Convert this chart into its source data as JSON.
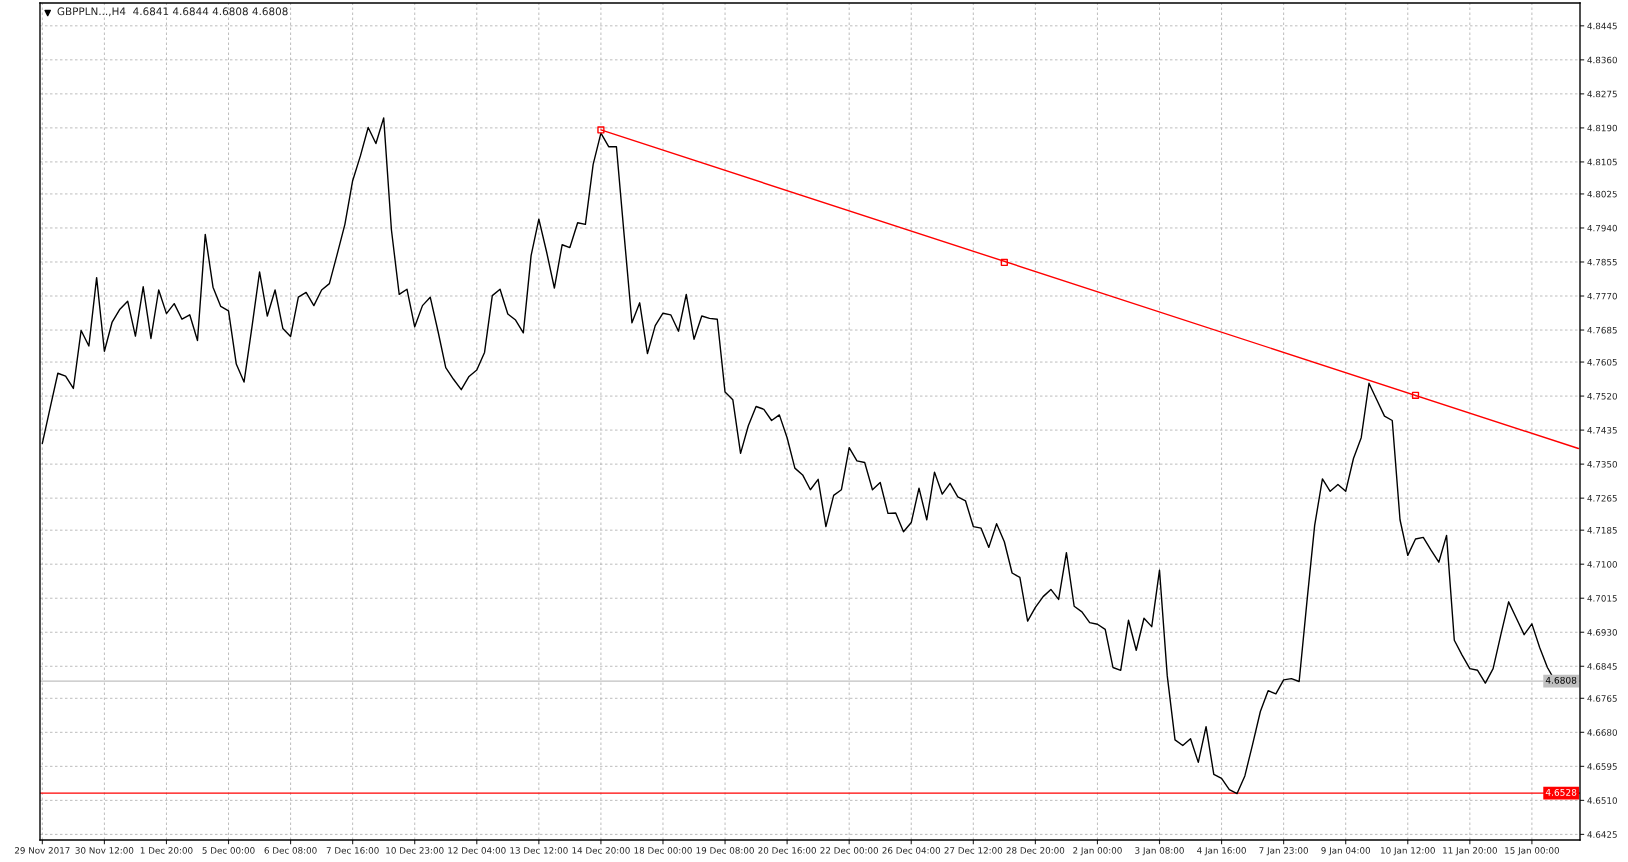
{
  "chart_data": {
    "type": "line",
    "title": "GBPPLN...,H4  4.6841 4.6844 4.6808 4.6808",
    "categories": [
      "29 Nov 2017",
      null,
      null,
      null,
      null,
      null,
      null,
      null,
      "30 Nov 12:00",
      null,
      null,
      null,
      null,
      null,
      null,
      null,
      "1 Dec 20:00",
      null,
      null,
      null,
      null,
      null,
      null,
      null,
      "5 Dec 00:00",
      null,
      null,
      null,
      null,
      null,
      null,
      null,
      "6 Dec 08:00",
      null,
      null,
      null,
      null,
      null,
      null,
      null,
      "7 Dec 16:00",
      null,
      null,
      null,
      null,
      null,
      null,
      null,
      "10 Dec 23:00",
      null,
      null,
      null,
      null,
      null,
      null,
      null,
      "12 Dec 04:00",
      null,
      null,
      null,
      null,
      null,
      null,
      null,
      "13 Dec 12:00",
      null,
      null,
      null,
      null,
      null,
      null,
      null,
      "14 Dec 20:00",
      null,
      null,
      null,
      null,
      null,
      null,
      null,
      "18 Dec 00:00",
      null,
      null,
      null,
      null,
      null,
      null,
      null,
      "19 Dec 08:00",
      null,
      null,
      null,
      null,
      null,
      null,
      null,
      "20 Dec 16:00",
      null,
      null,
      null,
      null,
      null,
      null,
      null,
      "22 Dec 00:00",
      null,
      null,
      null,
      null,
      null,
      null,
      null,
      "26 Dec 04:00",
      null,
      null,
      null,
      null,
      null,
      null,
      null,
      "27 Dec 12:00",
      null,
      null,
      null,
      null,
      null,
      null,
      null,
      "28 Dec 20:00",
      null,
      null,
      null,
      null,
      null,
      null,
      null,
      "2 Jan 00:00",
      null,
      null,
      null,
      null,
      null,
      null,
      null,
      "3 Jan 08:00",
      null,
      null,
      null,
      null,
      null,
      null,
      null,
      "4 Jan 16:00",
      null,
      null,
      null,
      null,
      null,
      null,
      null,
      "7 Jan 23:00",
      null,
      null,
      null,
      null,
      null,
      null,
      null,
      "9 Jan 04:00",
      null,
      null,
      null,
      null,
      null,
      null,
      null,
      "10 Jan 12:00",
      null,
      null,
      null,
      null,
      null,
      null,
      null,
      "11 Jan 20:00",
      null,
      null,
      null,
      null,
      null,
      null,
      null,
      "15 Jan 00:00",
      null,
      null,
      null,
      null,
      null,
      null
    ],
    "ylim": [
      4.6411,
      4.8502
    ],
    "yticks": [
      4.6425,
      {
        "value": 4.651,
        "label": "4.6510"
      },
      4.6595,
      {
        "value": 4.668,
        "label": "4.6680"
      },
      4.6765,
      4.6845,
      {
        "value": 4.693,
        "label": "4.6930"
      },
      4.7015,
      {
        "value": 4.71,
        "label": "4.7100"
      },
      4.7185,
      4.7265,
      {
        "value": 4.735,
        "label": "4.7350"
      },
      4.7435,
      {
        "value": 4.752,
        "label": "4.7520"
      },
      4.7605,
      4.7685,
      {
        "value": 4.777,
        "label": "4.7770"
      },
      4.7855,
      {
        "value": 4.794,
        "label": "4.7940"
      },
      4.8025,
      4.8105,
      {
        "value": 4.819,
        "label": "4.8190"
      },
      4.8275,
      {
        "value": 4.836,
        "label": "4.8360"
      },
      4.8445
    ],
    "grid": true,
    "line_style": "solid",
    "series": [
      {
        "color": "#000000",
        "values": [
          4.7402,
          4.749,
          4.7577,
          4.757,
          4.7539,
          4.7684,
          4.7645,
          4.7816,
          4.7632,
          4.7705,
          4.7737,
          4.7757,
          4.767,
          4.7793,
          4.7664,
          4.7785,
          4.7726,
          4.7751,
          4.7712,
          4.7723,
          4.7659,
          4.7924,
          4.7792,
          4.7744,
          4.7733,
          4.76,
          4.7555,
          4.769,
          4.783,
          4.772,
          4.7785,
          4.7689,
          4.7669,
          4.7767,
          4.7779,
          4.7746,
          4.7785,
          4.7801,
          4.7874,
          4.7949,
          4.8058,
          4.812,
          4.8191,
          4.8151,
          4.8215,
          4.7935,
          4.7774,
          4.7787,
          4.7693,
          4.7746,
          4.7767,
          4.7682,
          4.7591,
          4.7562,
          4.7536,
          4.7569,
          4.7585,
          4.7629,
          4.7771,
          4.7787,
          4.7725,
          4.771,
          4.7678,
          4.7871,
          4.7962,
          4.788,
          4.779,
          4.7898,
          4.7891,
          4.7953,
          4.7949,
          4.8099,
          4.8177,
          4.8143,
          4.8143,
          4.7921,
          4.7703,
          4.7753,
          4.7626,
          4.7696,
          4.7727,
          4.7723,
          4.7682,
          4.7774,
          4.7662,
          4.772,
          4.7714,
          4.7712,
          4.753,
          4.7511,
          4.7377,
          4.7446,
          4.7494,
          4.7487,
          4.7459,
          4.7473,
          4.7416,
          4.734,
          4.7323,
          4.7286,
          4.7312,
          4.7194,
          4.7272,
          4.7286,
          4.7391,
          4.7358,
          4.7354,
          4.7286,
          4.7304,
          4.7227,
          4.7228,
          4.7181,
          4.7204,
          4.729,
          4.7211,
          4.733,
          4.7275,
          4.7302,
          4.7268,
          4.7258,
          4.7194,
          4.719,
          4.7142,
          4.7201,
          4.7156,
          4.7078,
          4.7067,
          4.6958,
          4.6992,
          4.7019,
          4.7037,
          4.7012,
          4.7129,
          4.6995,
          4.6981,
          4.6954,
          4.695,
          4.6937,
          4.6842,
          4.6835,
          4.696,
          4.6885,
          4.6965,
          4.6944,
          4.7085,
          4.6821,
          4.6661,
          4.6647,
          4.6664,
          4.6605,
          4.6694,
          4.6575,
          4.6565,
          4.6537,
          4.6527,
          4.6571,
          4.665,
          4.6732,
          4.6784,
          4.6776,
          4.6811,
          4.6814,
          4.6807,
          4.7006,
          4.7197,
          4.7313,
          4.7282,
          4.7299,
          4.7282,
          4.7364,
          4.7416,
          4.7552,
          4.7511,
          4.747,
          4.7459,
          4.7211,
          4.7122,
          4.7163,
          4.7167,
          4.7135,
          4.7105,
          4.7172,
          4.691,
          4.6873,
          4.6839,
          4.6835,
          4.6803,
          4.6839,
          4.6924,
          4.7006,
          4.6965,
          4.6924,
          4.6951,
          4.6892,
          4.6842,
          4.6808,
          null,
          null,
          null
        ]
      },
      {
        "type": "line",
        "color": "#ff0000",
        "values": [
          null,
          null,
          null,
          null,
          null,
          null,
          null,
          null,
          null,
          null,
          null,
          null,
          null,
          null,
          null,
          null,
          null,
          null,
          null,
          null,
          null,
          null,
          null,
          null,
          null,
          null,
          null,
          null,
          null,
          null,
          null,
          null,
          null,
          null,
          null,
          null,
          null,
          null,
          null,
          null,
          null,
          null,
          null,
          null,
          null,
          null,
          null,
          null,
          null,
          null,
          null,
          null,
          null,
          null,
          null,
          null,
          null,
          null,
          null,
          null,
          null,
          null,
          null,
          null,
          null,
          null,
          null,
          null,
          null,
          null,
          null,
          null,
          4.8185,
          null,
          null,
          null,
          null,
          null,
          null,
          null,
          null,
          null,
          null,
          null,
          null,
          null,
          null,
          null,
          null,
          null,
          null,
          null,
          null,
          null,
          null,
          null,
          null,
          null,
          null,
          null,
          null,
          null,
          null,
          null,
          null,
          null,
          null,
          null,
          null,
          null,
          null,
          null,
          null,
          null,
          null,
          null,
          null,
          null,
          null,
          null,
          null,
          null,
          null,
          null,
          null,
          null,
          null,
          null,
          null,
          null,
          null,
          null,
          null,
          null,
          null,
          null,
          null,
          null,
          null,
          null,
          null,
          null,
          null,
          null,
          null,
          null,
          null,
          null,
          null,
          null,
          null,
          null,
          null,
          null,
          null,
          null,
          null,
          null,
          null,
          null,
          null,
          null,
          null,
          null,
          null,
          null,
          null,
          null,
          null,
          null,
          null,
          null,
          null,
          null,
          null,
          null,
          null,
          null,
          null,
          null,
          null,
          null,
          null,
          null,
          null,
          null,
          null,
          null,
          null,
          null,
          null,
          null,
          null,
          null,
          null,
          null,
          null,
          null,
          4.7389
        ]
      },
      {
        "type": "scatter",
        "marker": "square",
        "color": "#ff0000",
        "values": [
          null,
          null,
          null,
          null,
          null,
          null,
          null,
          null,
          null,
          null,
          null,
          null,
          null,
          null,
          null,
          null,
          null,
          null,
          null,
          null,
          null,
          null,
          null,
          null,
          null,
          null,
          null,
          null,
          null,
          null,
          null,
          null,
          null,
          null,
          null,
          null,
          null,
          null,
          null,
          null,
          null,
          null,
          null,
          null,
          null,
          null,
          null,
          null,
          null,
          null,
          null,
          null,
          null,
          null,
          null,
          null,
          null,
          null,
          null,
          null,
          null,
          null,
          null,
          null,
          null,
          null,
          null,
          null,
          null,
          null,
          null,
          null,
          4.8185,
          null,
          null,
          null,
          null,
          null,
          null,
          null,
          null,
          null,
          null,
          null,
          null,
          null,
          null,
          null,
          null,
          null,
          null,
          null,
          null,
          null,
          null,
          null,
          null,
          null,
          null,
          null,
          null,
          null,
          null,
          null,
          null,
          null,
          null,
          null,
          null,
          null,
          null,
          null,
          null,
          null,
          null,
          null,
          null,
          null,
          null,
          null,
          null,
          null,
          null,
          null,
          4.7854,
          null,
          null,
          null,
          null,
          null,
          null,
          null,
          null,
          null,
          null,
          null,
          null,
          null,
          null,
          null,
          null,
          null,
          null,
          null,
          null,
          null,
          null,
          null,
          null,
          null,
          null,
          null,
          null,
          null,
          null,
          null,
          null,
          null,
          null,
          null,
          null,
          null,
          null,
          null,
          null,
          null,
          null,
          null,
          null,
          null,
          null,
          null,
          null,
          null,
          null,
          null,
          null,
          4.7522,
          null,
          null,
          null,
          null,
          null,
          null,
          null,
          null,
          null,
          null,
          null,
          null,
          null,
          null,
          null,
          null,
          null,
          null,
          null,
          null,
          null
        ]
      }
    ],
    "ref_lines": [
      {
        "axis": "y",
        "value": 4.6808,
        "label": "4.6808",
        "color": "#c0c0c0"
      },
      {
        "axis": "y",
        "value": 4.6528,
        "label": "4.6528",
        "color": "#ff0000"
      }
    ]
  }
}
